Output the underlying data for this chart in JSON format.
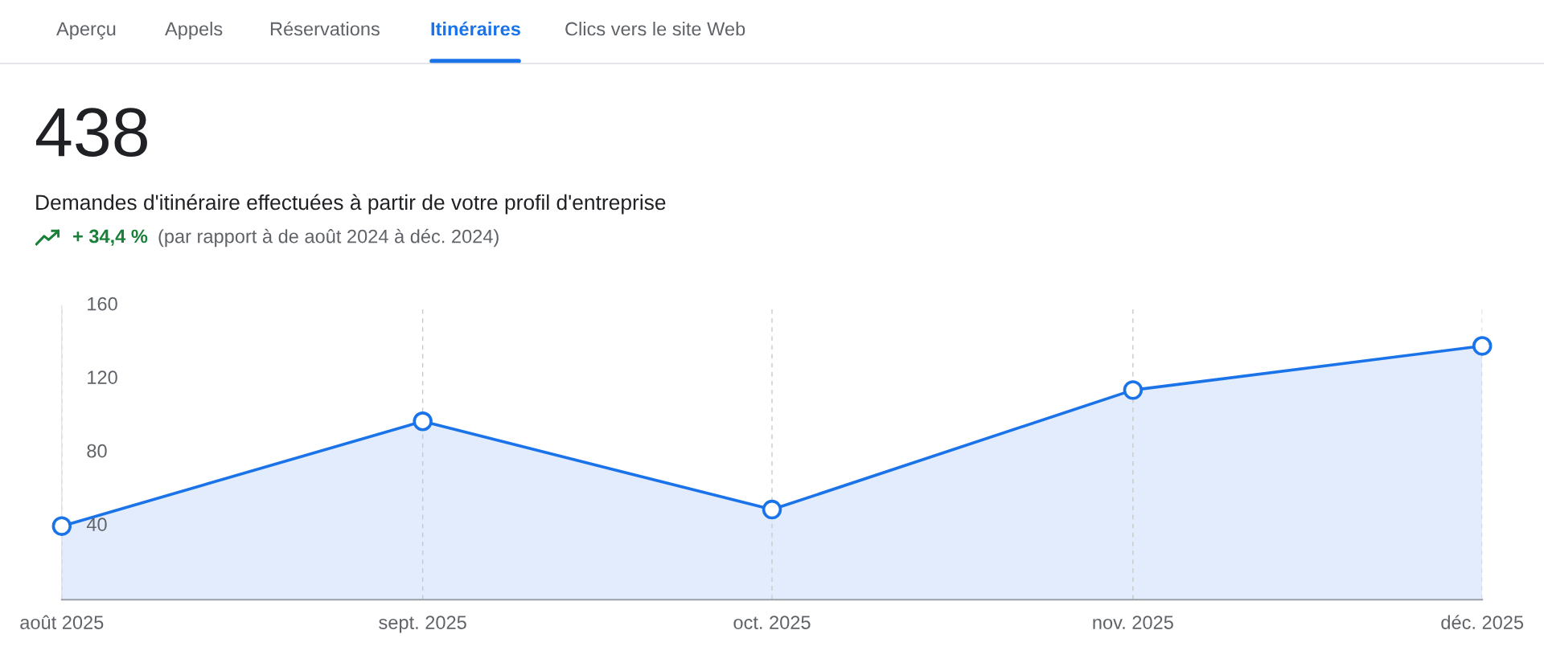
{
  "chart_data": {
    "type": "area",
    "title": "438",
    "subtitle": "Demandes d'itinéraire effectuées à partir de votre profil d'entreprise",
    "annotations": [
      "Aperçu",
      "Appels",
      "Réservations",
      "Itinéraires",
      "Clics vers le site Web",
      "+ 34,4 %",
      "(par rapport à de août 2024 à déc. 2024)"
    ],
    "x": [
      "2025-08",
      "2025-09",
      "2025-10",
      "2025-11",
      "2025-12"
    ],
    "series": [
      {
        "color": "#1a73e8",
        "values": [
          40,
          97,
          49,
          114,
          138
        ]
      }
    ],
    "xlim": [
      "2025-08",
      "2025-12"
    ],
    "xticks": [
      {
        "value": "2025-08",
        "label": "août 2025"
      },
      {
        "value": "2025-09",
        "label": "sept. 2025"
      },
      {
        "value": "2025-10",
        "label": "oct. 2025"
      },
      {
        "value": "2025-11",
        "label": "nov. 2025"
      },
      {
        "value": "2025-12",
        "label": "déc. 2025"
      }
    ],
    "ylim": [
      0,
      160
    ],
    "yticks": [
      40,
      80,
      120,
      160
    ],
    "grid": "x",
    "marker": "circle",
    "line_style": "solid"
  }
}
